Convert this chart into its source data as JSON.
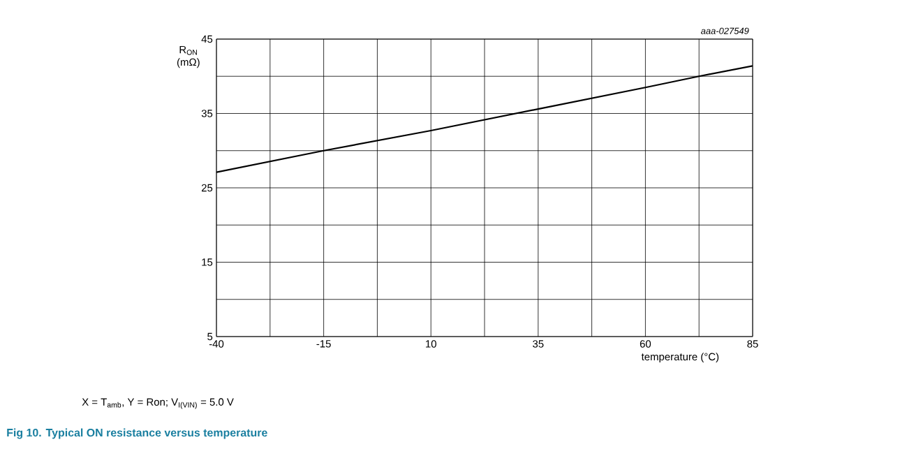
{
  "chart_data": {
    "type": "line",
    "title": "Fig 10.   Typical ON resistance versus temperature",
    "xlabel": "temperature (°C)",
    "ylabel": "R$_{ON}$ (mΩ)",
    "annotations": [
      "aaa-027549",
      "X = T$_{amb}$, Y = Ron; V$_{I(VIN)}$ = 5.0 V"
    ],
    "x": [
      -40,
      -15,
      10,
      35,
      60,
      72.5,
      85
    ],
    "series": [
      {
        "color": "#000000",
        "values": [
          27.1,
          30.0,
          32.7,
          35.6,
          38.5,
          40.0,
          41.4
        ]
      }
    ],
    "xlim": [
      -40,
      85
    ],
    "ylim": [
      5,
      45
    ],
    "xticks": [
      -40,
      {
        "value": -27.5,
        "label": null
      },
      -15,
      {
        "value": -2.5,
        "label": null
      },
      10,
      {
        "value": 22.5,
        "label": null
      },
      35,
      {
        "value": 47.5,
        "label": null
      },
      60,
      {
        "value": 72.5,
        "label": null
      },
      85
    ],
    "yticks": [
      5,
      {
        "value": 10,
        "label": null
      },
      15,
      {
        "value": 20,
        "label": null
      },
      25,
      {
        "value": 30,
        "label": null
      },
      35,
      {
        "value": 40,
        "label": null
      },
      45
    ],
    "grid": true,
    "marker": "none",
    "line_style": "solid"
  }
}
